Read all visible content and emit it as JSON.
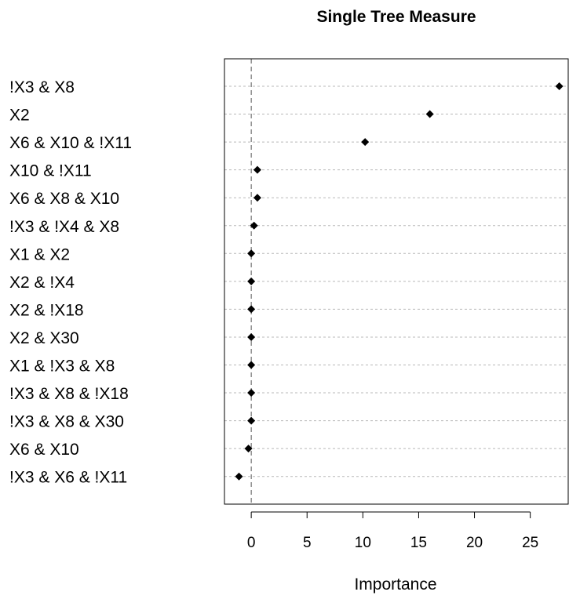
{
  "chart_data": {
    "type": "scatter",
    "title": "Single Tree Measure",
    "xlabel": "Importance",
    "ylabel": "",
    "xlim": [
      -2.4,
      28.4
    ],
    "x_ticks": [
      "0",
      "5",
      "10",
      "15",
      "20",
      "25"
    ],
    "x_tick_values": [
      0,
      5,
      10,
      15,
      20,
      25
    ],
    "reference_line_x": 0,
    "grid": "horizontal dotted",
    "categories": [
      "!X3 & X8",
      "X2",
      "X6 & X10 & !X11",
      "X10 & !X11",
      "X6 & X8 & X10",
      "!X3 & !X4 & X8",
      "X1 & X2",
      "X2 & !X4",
      "X2 & !X18",
      "X2 & X30",
      "X1 & !X3 & X8",
      "!X3 & X8 & !X18",
      "!X3 & X8 & X30",
      "X6 & X10",
      "!X3 & X6 & !X11"
    ],
    "values": [
      27.6,
      16.0,
      10.2,
      0.55,
      0.55,
      0.25,
      0.0,
      0.0,
      0.0,
      0.0,
      0.0,
      0.0,
      0.0,
      -0.25,
      -1.1
    ]
  }
}
